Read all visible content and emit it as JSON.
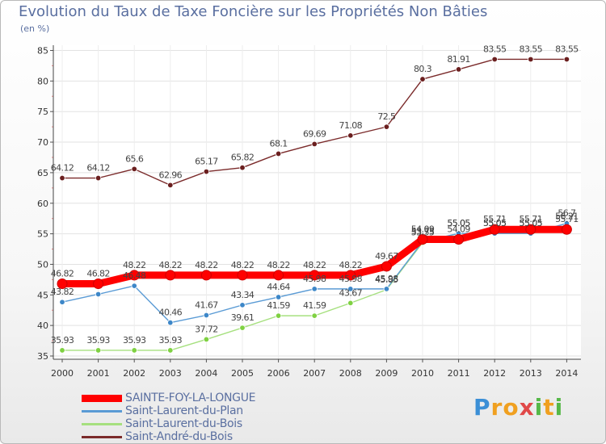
{
  "title": "Evolution du Taux de Taxe Foncière sur les Propriétés Non Bâties",
  "unit": "(en %)",
  "brand": {
    "letters": [
      "P",
      "r",
      "o",
      "x",
      "i",
      "t",
      "i"
    ],
    "colors": [
      "#3b8fd6",
      "#f0a020",
      "#f0a020",
      "#e04848",
      "#56b848",
      "#f0a020",
      "#56b848"
    ]
  },
  "chart_data": {
    "type": "line",
    "title": "Evolution du Taux de Taxe Foncière sur les Propriétés Non Bâties",
    "ylabel": "(en %)",
    "xlabel": "",
    "ylim": [
      35,
      85
    ],
    "yticks": [
      35,
      40,
      45,
      50,
      55,
      60,
      65,
      70,
      75,
      80,
      85
    ],
    "x": [
      "2000",
      "2001",
      "2002",
      "2003",
      "2004",
      "2005",
      "2006",
      "2007",
      "2008",
      "2009",
      "2010",
      "2011",
      "2012",
      "2013",
      "2014"
    ],
    "series": [
      {
        "name": "SAINTE-FOY-LA-LONGUE",
        "color": "#ff0000",
        "values": [
          46.82,
          46.82,
          48.22,
          48.22,
          48.22,
          48.22,
          48.22,
          48.22,
          48.22,
          49.67,
          54.09,
          54.09,
          55.71,
          55.71,
          55.71
        ],
        "labels": [
          "46.82",
          "46.82",
          "48.22",
          "48.22",
          "48.22",
          "48.22",
          "48.22",
          "48.22",
          "48.22",
          "49.67",
          "54.09",
          "54.09",
          "55.71",
          "55.71",
          "55.71"
        ]
      },
      {
        "name": "Saint-Laurent-du-Plan",
        "color": "#5a9bd5",
        "values": [
          43.82,
          45.11,
          46.48,
          40.46,
          41.67,
          43.34,
          44.64,
          45.98,
          45.98,
          45.98,
          53.73,
          55.05,
          55.05,
          55.05,
          56.7
        ],
        "labels": [
          "43.82",
          "",
          "46.48",
          "40.46",
          "41.67",
          "43.34",
          "44.64",
          "45.98",
          "45.98",
          "45.98",
          "53.73",
          "55.05",
          "55.05",
          "55.05",
          "56.7"
        ]
      },
      {
        "name": "Saint-Laurent-du-Bois",
        "color": "#a6e07f",
        "values": [
          35.93,
          35.93,
          35.93,
          35.93,
          37.72,
          39.61,
          41.59,
          41.59,
          43.67,
          45.85,
          53.55,
          55.05,
          55.05,
          55.05,
          56.21
        ],
        "labels": [
          "35.93",
          "35.93",
          "35.93",
          "35.93",
          "37.72",
          "39.61",
          "41.59",
          "41.59",
          "43.67",
          "45.85",
          "53.55",
          "55.05",
          "55.05",
          "55.05",
          "56.21"
        ]
      },
      {
        "name": "Saint-André-du-Bois",
        "color": "#7b2b2b",
        "values": [
          64.12,
          64.12,
          65.6,
          62.96,
          65.17,
          65.82,
          68.1,
          69.69,
          71.08,
          72.5,
          80.3,
          81.91,
          83.55,
          83.55,
          83.55
        ],
        "labels": [
          "64.12",
          "64.12",
          "65.6",
          "62.96",
          "65.17",
          "65.82",
          "68.1",
          "69.69",
          "71.08",
          "72.5",
          "80.3",
          "81.91",
          "83.55",
          "83.55",
          "83.55"
        ]
      }
    ],
    "legend": [
      "SAINTE-FOY-LA-LONGUE",
      "Saint-Laurent-du-Plan",
      "Saint-Laurent-du-Bois",
      "Saint-André-du-Bois"
    ]
  }
}
